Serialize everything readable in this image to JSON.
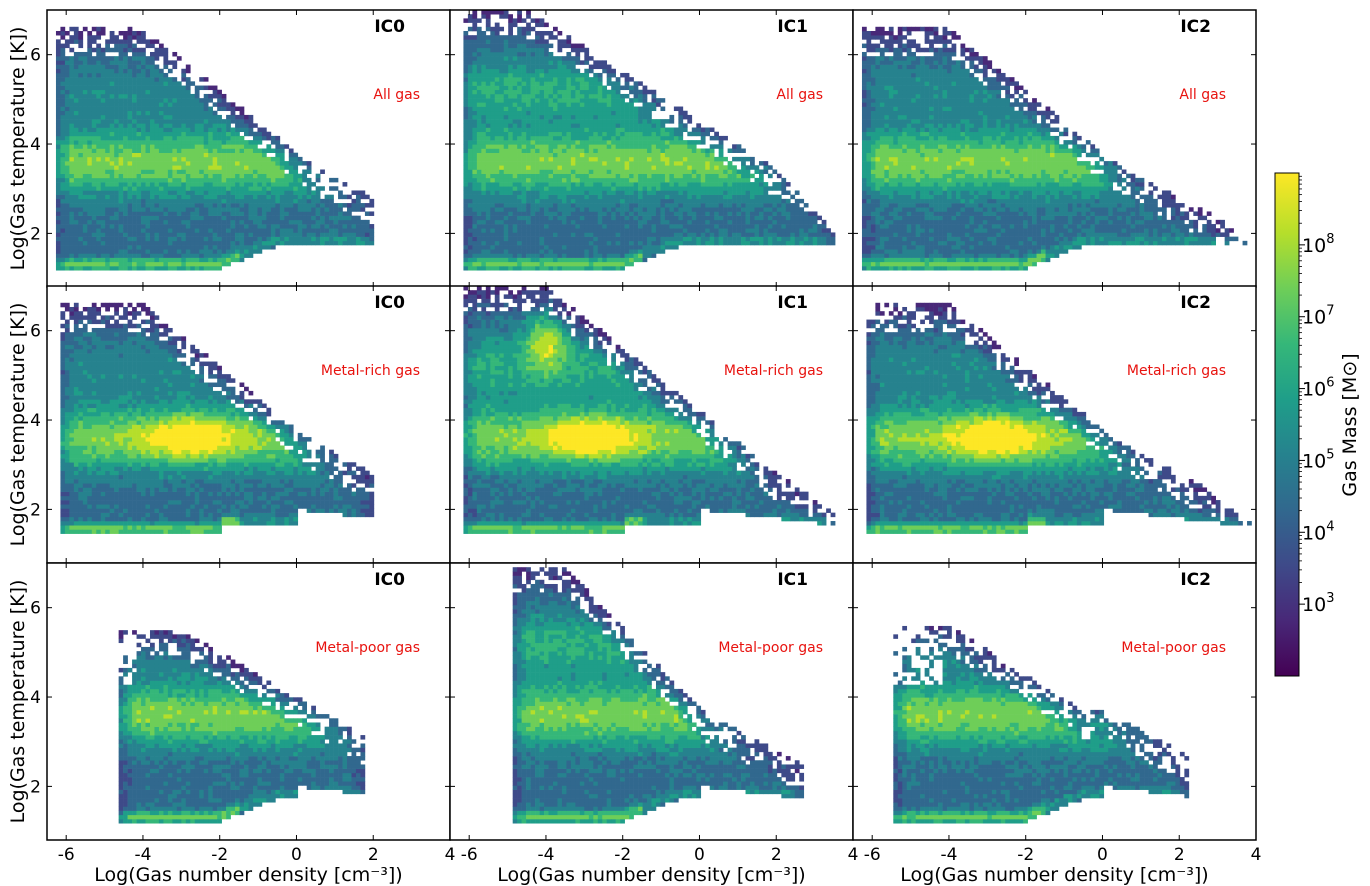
{
  "chart_data": {
    "type": "heatmap",
    "layout": {
      "rows": 3,
      "cols": 3
    },
    "xlabel": "Log(Gas number density [cm⁻³])",
    "ylabel": "Log(Gas temperature [K])",
    "xlim": [
      -6.5,
      4
    ],
    "ylim": [
      0.8,
      7.0
    ],
    "xticks": [
      -6,
      -4,
      -2,
      0,
      2,
      4
    ],
    "xtick_labels": [
      "-6",
      "-4",
      "-2",
      "0",
      "2",
      "4"
    ],
    "yticks": [
      2,
      4,
      6
    ],
    "ytick_labels": [
      "2",
      "4",
      "6"
    ],
    "column_tags": [
      "IC0",
      "IC1",
      "IC2"
    ],
    "row_labels": [
      "All gas",
      "Metal-rich gas",
      "Metal-poor gas"
    ],
    "colorbar": {
      "label": "Gas Mass [M⊙]",
      "scale": "log",
      "range": [
        100,
        1000000000
      ],
      "ticks": [
        1000,
        10000,
        100000,
        1000000,
        10000000,
        100000000
      ],
      "tick_labels": [
        "10",
        "10",
        "10",
        "10",
        "10",
        "10"
      ],
      "tick_exponents": [
        "3",
        "4",
        "5",
        "6",
        "7",
        "8"
      ],
      "colormap": "viridis"
    }
  },
  "colors": {
    "viridis": [
      "#440154",
      "#482878",
      "#3e4a89",
      "#31688e",
      "#26828e",
      "#1f9e89",
      "#35b779",
      "#6ece58",
      "#b5de2b",
      "#fde725"
    ],
    "label_red": "#e8130f"
  }
}
